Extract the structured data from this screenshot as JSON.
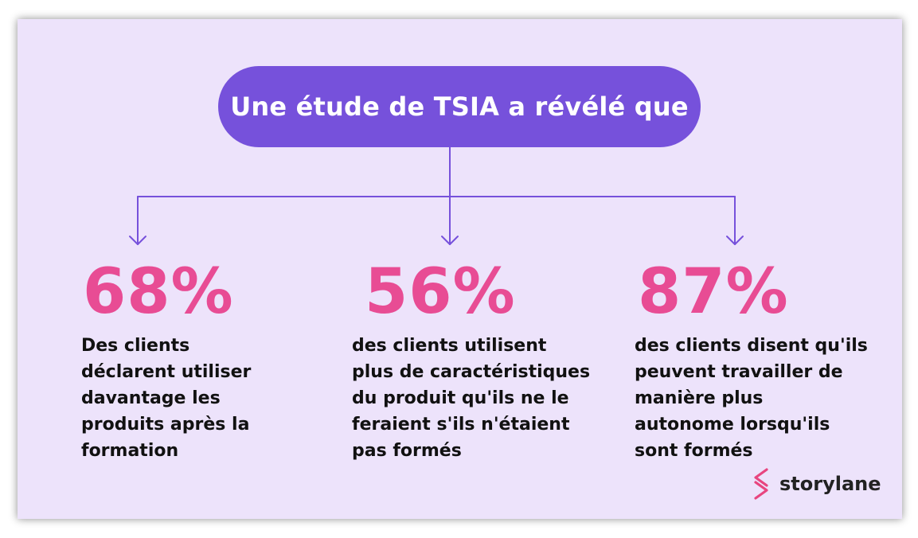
{
  "title": "Une étude de TSIA a révélé que",
  "stats": [
    {
      "value": "68%",
      "text": "Des clients\ndéclarent utiliser\ndavantage les\nproduits après la\nformation"
    },
    {
      "value": "56%",
      "text": "des clients utilisent\nplus de caractéristiques\ndu produit qu'ils ne le\nferaient s'ils n'étaient\npas formés"
    },
    {
      "value": "87%",
      "text": "des clients disent qu'ils\npeuvent travailler de\nmanière plus\nautonome lorsqu'ils\nsont formés"
    }
  ],
  "logo": {
    "text": "storylane",
    "icon": "storylane-logo-icon"
  },
  "colors": {
    "background": "#ede3fb",
    "accent": "#7651db",
    "stat": "#e84c94",
    "logo": "#e8457f"
  }
}
